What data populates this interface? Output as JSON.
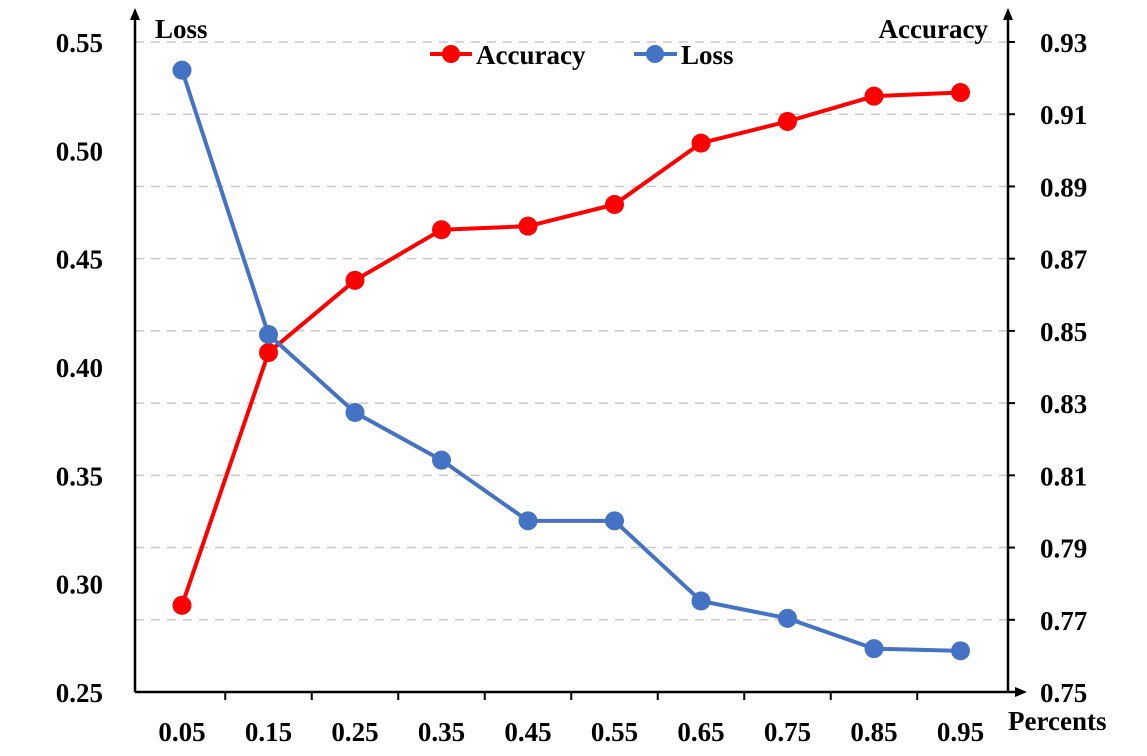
{
  "chart_data": {
    "type": "line",
    "title": "",
    "xlabel": "Percents",
    "ylabel_left": "Loss",
    "ylabel_right": "Accuracy",
    "categories": [
      "0.05",
      "0.15",
      "0.25",
      "0.35",
      "0.45",
      "0.55",
      "0.65",
      "0.75",
      "0.85",
      "0.95"
    ],
    "left_ticks": [
      "0.25",
      "0.30",
      "0.35",
      "0.40",
      "0.45",
      "0.50",
      "0.55"
    ],
    "right_ticks": [
      "0.75",
      "0.77",
      "0.79",
      "0.81",
      "0.83",
      "0.85",
      "0.87",
      "0.89",
      "0.91",
      "0.93"
    ],
    "ylim_left": [
      0.25,
      0.55
    ],
    "ylim_right": [
      0.75,
      0.93
    ],
    "grid": "horizontal dashed",
    "legend_position": "top-center",
    "series": [
      {
        "name": "Accuracy",
        "axis": "right",
        "color": "#ff0000",
        "values": [
          0.774,
          0.844,
          0.864,
          0.878,
          0.879,
          0.885,
          0.902,
          0.908,
          0.915,
          0.916
        ]
      },
      {
        "name": "Loss",
        "axis": "left",
        "color": "#4472c4",
        "values": [
          0.537,
          0.415,
          0.379,
          0.357,
          0.329,
          0.329,
          0.292,
          0.284,
          0.27,
          0.269
        ]
      }
    ]
  }
}
